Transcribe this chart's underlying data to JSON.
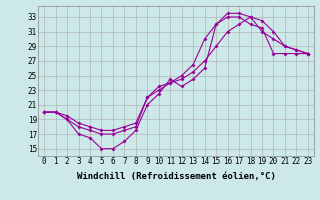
{
  "xlabel": "Windchill (Refroidissement éolien,°C)",
  "background_color": "#cce8e8",
  "grid_color": "#aaaaaa",
  "line_color": "#990099",
  "xlim_min": -0.5,
  "xlim_max": 23.5,
  "ylim_min": 14.0,
  "ylim_max": 34.5,
  "xticks": [
    0,
    1,
    2,
    3,
    4,
    5,
    6,
    7,
    8,
    9,
    10,
    11,
    12,
    13,
    14,
    15,
    16,
    17,
    18,
    19,
    20,
    21,
    22,
    23
  ],
  "yticks": [
    15,
    17,
    19,
    21,
    23,
    25,
    27,
    29,
    31,
    33
  ],
  "line1_x": [
    0,
    1,
    2,
    3,
    4,
    5,
    6,
    7,
    8,
    9,
    10,
    11,
    12,
    13,
    14,
    15,
    16,
    17,
    18,
    19,
    20,
    21,
    22,
    23
  ],
  "line1_y": [
    20,
    20,
    19,
    17,
    16.5,
    15,
    15,
    16,
    17.5,
    21,
    22.5,
    24.5,
    23.5,
    24.5,
    26,
    32,
    33.5,
    33.5,
    33,
    31,
    30,
    29,
    28.5,
    28
  ],
  "line2_x": [
    0,
    1,
    2,
    3,
    4,
    5,
    6,
    7,
    8,
    9,
    10,
    11,
    12,
    13,
    14,
    15,
    16,
    17,
    18,
    19,
    20,
    21,
    22,
    23
  ],
  "line2_y": [
    20,
    20,
    19,
    18,
    17.5,
    17,
    17,
    17.5,
    18,
    22,
    23.5,
    24,
    25,
    26.5,
    30,
    32,
    33,
    33,
    32,
    31.5,
    28,
    28,
    28,
    28
  ],
  "line3_x": [
    0,
    1,
    2,
    3,
    4,
    5,
    6,
    7,
    8,
    9,
    10,
    11,
    12,
    13,
    14,
    15,
    16,
    17,
    18,
    19,
    20,
    21,
    22,
    23
  ],
  "line3_y": [
    20,
    20,
    19.5,
    18.5,
    18,
    17.5,
    17.5,
    18,
    18.5,
    22,
    23,
    24,
    24.5,
    25.5,
    27,
    29,
    31,
    32,
    33,
    32.5,
    31,
    29,
    28.5,
    28
  ],
  "tick_fontsize": 5.5,
  "xlabel_fontsize": 6.5,
  "linewidth": 0.8,
  "markersize": 2.0
}
